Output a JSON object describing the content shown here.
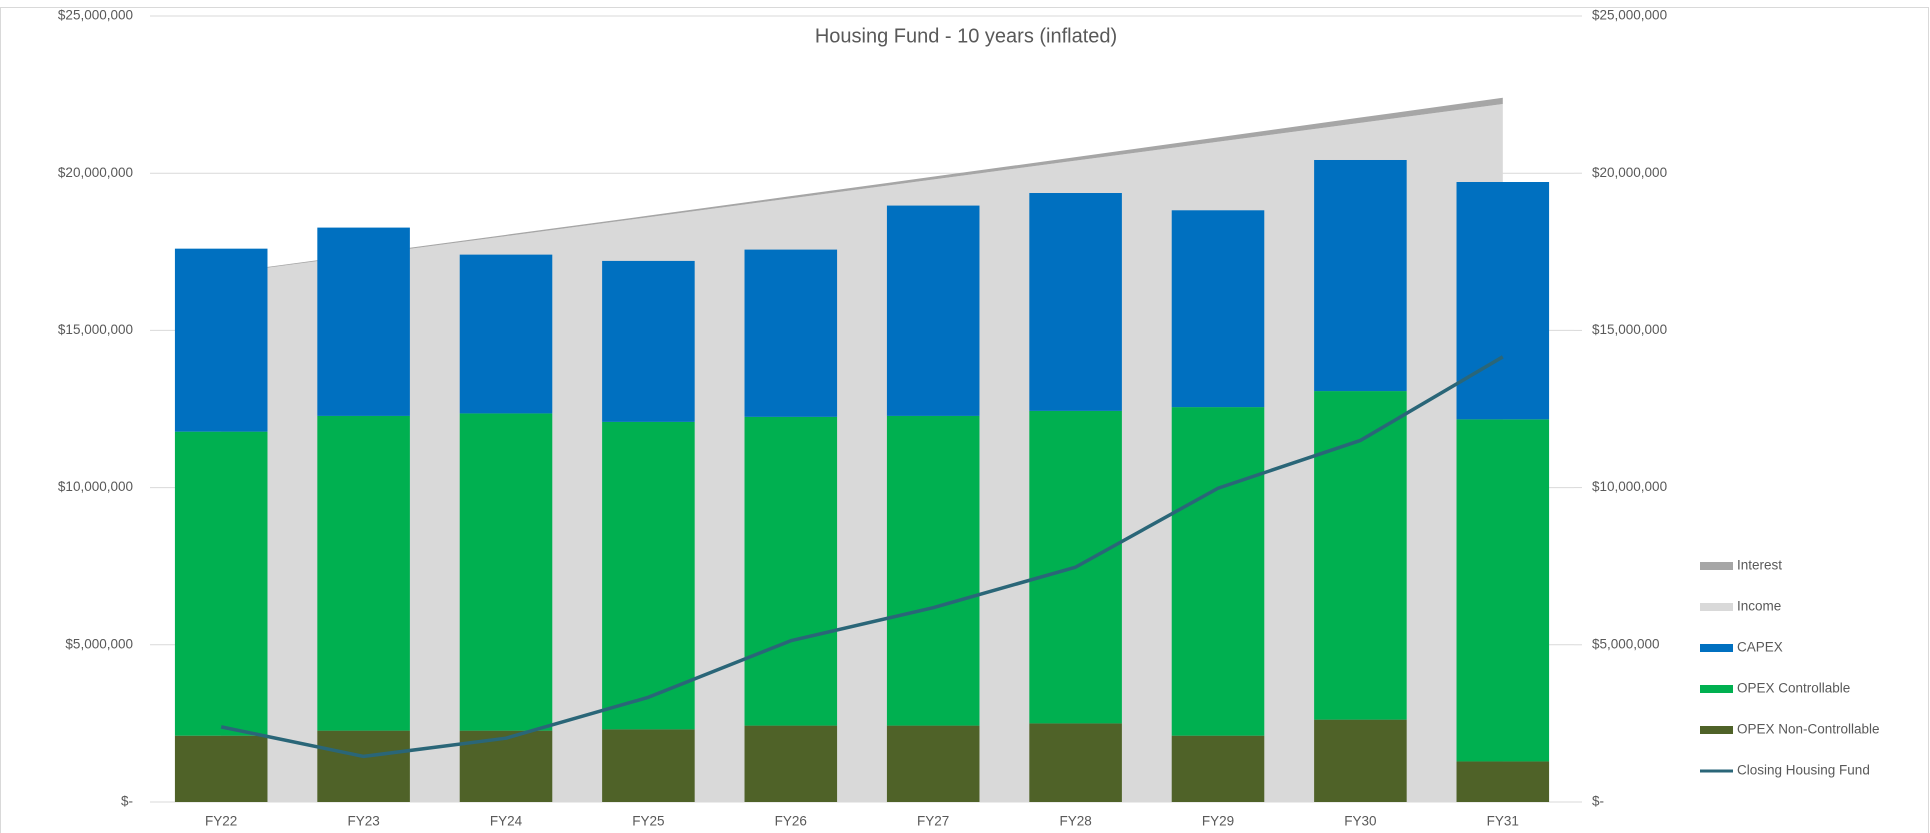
{
  "chart_data": {
    "type": "combo",
    "title": "Housing Fund - 10 years (inflated)",
    "categories": [
      "FY22",
      "FY23",
      "FY24",
      "FY25",
      "FY26",
      "FY27",
      "FY28",
      "FY29",
      "FY30",
      "FY31"
    ],
    "series": [
      {
        "name": "Interest",
        "type": "area",
        "color": "#a6a6a6",
        "values": [
          20000,
          30000,
          40000,
          50000,
          70000,
          90000,
          110000,
          140000,
          170000,
          200000
        ]
      },
      {
        "name": "Income",
        "type": "area",
        "color": "#d9d9d9",
        "values": [
          16800000,
          17400000,
          18000000,
          18600000,
          19200000,
          19800000,
          20400000,
          21000000,
          21600000,
          22200000
        ]
      },
      {
        "name": "CAPEX",
        "type": "bar",
        "color": "#0070c0",
        "values": [
          5820000,
          5990000,
          5050000,
          5120000,
          5320000,
          6690000,
          6930000,
          6260000,
          7350000,
          7550000
        ]
      },
      {
        "name": "OPEX Controllable",
        "type": "bar",
        "color": "#00b050",
        "values": [
          9670000,
          10010000,
          10090000,
          9780000,
          9820000,
          9850000,
          9940000,
          10450000,
          10450000,
          10880000
        ]
      },
      {
        "name": "OPEX Non-Controllable",
        "type": "bar",
        "color": "#4f6228",
        "values": [
          2110000,
          2270000,
          2270000,
          2310000,
          2430000,
          2430000,
          2500000,
          2110000,
          2620000,
          1290000
        ]
      },
      {
        "name": "Closing Housing Fund",
        "type": "line",
        "axis": "y2",
        "color": "#2a6678",
        "values": [
          2390000,
          1450000,
          2030000,
          3330000,
          5130000,
          6180000,
          7470000,
          9980000,
          11500000,
          14160000
        ]
      }
    ],
    "ylim": [
      0,
      25000000
    ],
    "yticks": [
      {
        "value": 0,
        "label": "$-"
      },
      {
        "value": 5000000,
        "label": "$5,000,000"
      },
      {
        "value": 10000000,
        "label": "$10,000,000"
      },
      {
        "value": 15000000,
        "label": "$15,000,000"
      },
      {
        "value": 20000000,
        "label": "$20,000,000"
      },
      {
        "value": 25000000,
        "label": "$25,000,000"
      }
    ],
    "y2lim": [
      0,
      25000000
    ],
    "y2ticks": [
      {
        "value": 0,
        "label": "$-"
      },
      {
        "value": 5000000,
        "label": "$5,000,000"
      },
      {
        "value": 10000000,
        "label": "$10,000,000"
      },
      {
        "value": 15000000,
        "label": "$15,000,000"
      },
      {
        "value": 20000000,
        "label": "$20,000,000"
      },
      {
        "value": 25000000,
        "label": "$25,000,000"
      }
    ],
    "grid": true,
    "legend": "right"
  }
}
